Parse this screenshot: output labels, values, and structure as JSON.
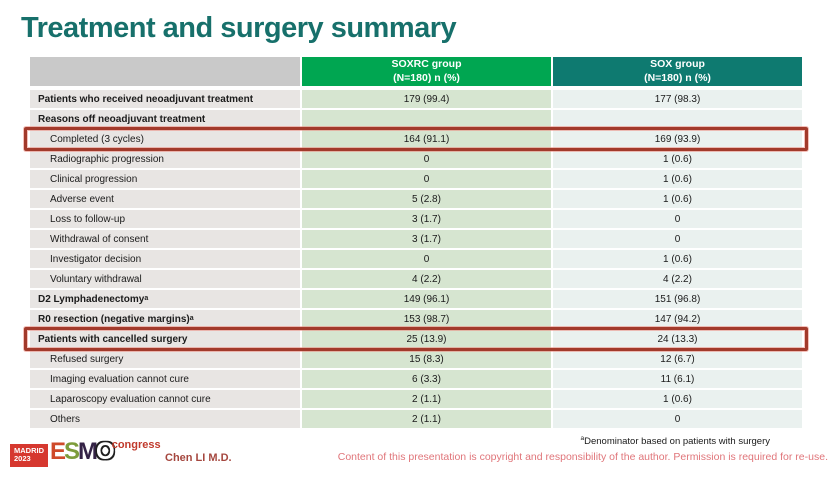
{
  "title": "Treatment and surgery summary",
  "table": {
    "header": {
      "col1": "",
      "soxrc_line1": "SOXRC group",
      "soxrc_line2": "(N=180)  n (%)",
      "sox_line1": "SOX group",
      "sox_line2": "(N=180)  n (%)"
    },
    "rows": [
      {
        "label": "Patients who received neoadjuvant treatment",
        "soxrc": "179 (99.4)",
        "sox": "177 (98.3)",
        "bold": true,
        "highlight": false
      },
      {
        "label": "Reasons off neoadjuvant treatment",
        "soxrc": "",
        "sox": "",
        "bold": true,
        "highlight": false
      },
      {
        "label": "Completed (3 cycles)",
        "soxrc": "164 (91.1)",
        "sox": "169 (93.9)",
        "bold": false,
        "highlight": true
      },
      {
        "label": "Radiographic progression",
        "soxrc": "0",
        "sox": "1 (0.6)",
        "bold": false,
        "highlight": false
      },
      {
        "label": "Clinical progression",
        "soxrc": "0",
        "sox": "1 (0.6)",
        "bold": false,
        "highlight": false
      },
      {
        "label": "Adverse event",
        "soxrc": "5 (2.8)",
        "sox": "1 (0.6)",
        "bold": false,
        "highlight": false
      },
      {
        "label": "Loss to follow-up",
        "soxrc": "3 (1.7)",
        "sox": "0",
        "bold": false,
        "highlight": false
      },
      {
        "label": "Withdrawal of consent",
        "soxrc": "3 (1.7)",
        "sox": "0",
        "bold": false,
        "highlight": false
      },
      {
        "label": "Investigator decision",
        "soxrc": "0",
        "sox": "1 (0.6)",
        "bold": false,
        "highlight": false
      },
      {
        "label": "Voluntary withdrawal",
        "soxrc": "4 (2.2)",
        "sox": "4 (2.2)",
        "bold": false,
        "highlight": false
      },
      {
        "label": "D2 Lymphadenectomy",
        "sup": "a",
        "soxrc": "149 (96.1)",
        "sox": "151 (96.8)",
        "bold": true,
        "highlight": false
      },
      {
        "label": "R0 resection (negative margins)",
        "sup": "a",
        "soxrc": "153 (98.7)",
        "sox": "147 (94.2)",
        "bold": true,
        "highlight": false
      },
      {
        "label": "Patients with cancelled surgery",
        "soxrc": "25 (13.9)",
        "sox": "24 (13.3)",
        "bold": true,
        "highlight": true
      },
      {
        "label": "Refused surgery",
        "soxrc": "15 (8.3)",
        "sox": "12 (6.7)",
        "bold": false,
        "highlight": false
      },
      {
        "label": "Imaging evaluation cannot cure",
        "soxrc": "6 (3.3)",
        "sox": "11 (6.1)",
        "bold": false,
        "highlight": false
      },
      {
        "label": "Laparoscopy evaluation cannot cure",
        "soxrc": "2 (1.1)",
        "sox": "1 (0.6)",
        "bold": false,
        "highlight": false
      },
      {
        "label": "Others",
        "soxrc": "2 (1.1)",
        "sox": "0",
        "bold": false,
        "highlight": false
      }
    ]
  },
  "footer": {
    "logo": {
      "city": "MADRID",
      "year": "2023",
      "letters": [
        "E",
        "S",
        "M",
        "O"
      ],
      "congress": "congress"
    },
    "author": "Chen LI M.D.",
    "footnote_sup": "a",
    "footnote_text": "Denominator based on patients with surgery",
    "copyright": "Content of this presentation is copyright and responsibility of the author. Permission is required for re-use."
  },
  "colors": {
    "title": "#17706b",
    "header_gray": "#c9c9c9",
    "group_green": "#00a651",
    "group_teal": "#0e7a70",
    "label_bg": "#e8e5e3",
    "soxrc_bg": "#d6e5d0",
    "sox_bg": "#eaf1ef",
    "highlight_red": "#a23a2b",
    "madrid_bg": "#d6382f",
    "esmo_e": "#cf4a2a",
    "esmo_s": "#7d9c3b",
    "esmo_m": "#342346",
    "esmo_o": "#1f1f1f",
    "congress_red": "#c0392b",
    "author_red": "#a5473f",
    "footnote_black": "#1a1a1a",
    "copyright_red": "#e0757a"
  }
}
